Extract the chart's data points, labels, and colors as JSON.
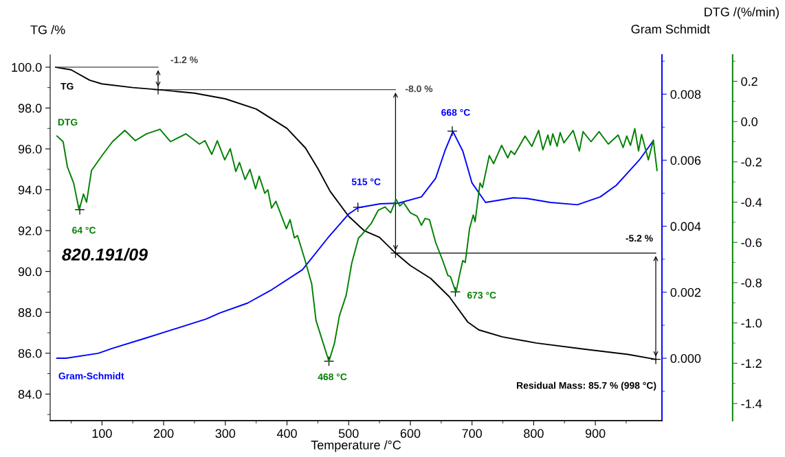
{
  "chart_data": {
    "type": "line",
    "xlabel": "Temperature /°C",
    "ylabel": "TG /%",
    "y2label": "Gram Schmidt",
    "y3label": "DTG /(%/min)",
    "xlim": [
      16,
      1008
    ],
    "xticks": [
      100,
      200,
      300,
      400,
      500,
      600,
      700,
      800,
      900
    ],
    "ylim": [
      82.7,
      100.6
    ],
    "yticks": [
      {
        "value": 84,
        "label": "84.0"
      },
      {
        "value": 86,
        "label": "86.0"
      },
      {
        "value": 88,
        "label": "88.0"
      },
      {
        "value": 90,
        "label": "90.0"
      },
      {
        "value": 92,
        "label": "92.0"
      },
      {
        "value": 94,
        "label": "94.0"
      },
      {
        "value": 96,
        "label": "96.0"
      },
      {
        "value": 98,
        "label": "98.0"
      },
      {
        "value": 100,
        "label": "100.0"
      }
    ],
    "y2lim": [
      -0.00189,
      0.00919
    ],
    "y2ticks": [
      {
        "value": 0,
        "label": "0.000"
      },
      {
        "value": 0.002,
        "label": "0.002"
      },
      {
        "value": 0.004,
        "label": "0.004"
      },
      {
        "value": 0.006,
        "label": "0.006"
      },
      {
        "value": 0.008,
        "label": "0.008"
      }
    ],
    "y3lim": [
      -1.485,
      0.331
    ],
    "y3ticks": [
      {
        "value": -1.4,
        "label": "-1.4"
      },
      {
        "value": -1.2,
        "label": "-1.2"
      },
      {
        "value": -1.0,
        "label": "-1.0"
      },
      {
        "value": -0.8,
        "label": "-0.8"
      },
      {
        "value": -0.6,
        "label": "-0.6"
      },
      {
        "value": -0.4,
        "label": "-0.4"
      },
      {
        "value": -0.2,
        "label": "-0.2"
      },
      {
        "value": 0,
        "label": "0.0"
      },
      {
        "value": 0.2,
        "label": "0.2"
      }
    ],
    "grid": false,
    "legend": "left",
    "marker": "none",
    "line_style": "solid",
    "series": [
      {
        "name": "TG",
        "color": "#000000",
        "axis": "y",
        "x": [
          25,
          50,
          80,
          100,
          150,
          191,
          250,
          300,
          350,
          400,
          430,
          450,
          470,
          500,
          525,
          550,
          576,
          600,
          633,
          663,
          693,
          711,
          749,
          804,
          879,
          953,
          998
        ],
        "values": [
          100.0,
          99.87,
          99.36,
          99.18,
          99.0,
          98.9,
          98.73,
          98.45,
          97.95,
          97.0,
          96.04,
          95.04,
          93.92,
          92.7,
          92.0,
          91.67,
          90.9,
          90.29,
          89.66,
          88.77,
          87.53,
          87.14,
          86.8,
          86.5,
          86.21,
          85.94,
          85.7
        ]
      },
      {
        "name": "Gram-Schmidt",
        "color": "#0000ff",
        "axis": "y2",
        "x": [
          27,
          42,
          94,
          117,
          169,
          210,
          269,
          291,
          336,
          373,
          425,
          466,
          500,
          515,
          551,
          581,
          618,
          641,
          656,
          669,
          685,
          700,
          722,
          767,
          789,
          827,
          871,
          908,
          934,
          971,
          994
        ],
        "values": [
          0.0,
          0.0,
          0.00015,
          0.0003,
          0.0006,
          0.00084,
          0.00119,
          0.00137,
          0.00167,
          0.00205,
          0.00268,
          0.00364,
          0.00437,
          0.00456,
          0.00468,
          0.0047,
          0.00489,
          0.00545,
          0.00628,
          0.00687,
          0.00628,
          0.00531,
          0.00472,
          0.00486,
          0.00484,
          0.00472,
          0.00465,
          0.00489,
          0.00524,
          0.006,
          0.00659
        ]
      },
      {
        "name": "DTG",
        "color": "#008000",
        "axis": "y3",
        "x": [
          27,
          37,
          44,
          54,
          63,
          70,
          75,
          83,
          100,
          117,
          137,
          154,
          172,
          194,
          211,
          236,
          258,
          267,
          278,
          287,
          299,
          308,
          317,
          323,
          332,
          340,
          349,
          355,
          364,
          369,
          375,
          382,
          399,
          405,
          412,
          417,
          429,
          440,
          447,
          468,
          477,
          485,
          496,
          505,
          516,
          520,
          537,
          548,
          559,
          568,
          577,
          583,
          589,
          600,
          611,
          618,
          624,
          631,
          641,
          652,
          661,
          665,
          674,
          680,
          685,
          689,
          696,
          702,
          705,
          713,
          717,
          728,
          735,
          748,
          758,
          763,
          769,
          786,
          797,
          808,
          815,
          823,
          827,
          831,
          838,
          843,
          849,
          864,
          874,
          880,
          893,
          906,
          921,
          937,
          945,
          951,
          957,
          964,
          970,
          975,
          986,
          994,
          1000
        ],
        "values": [
          -0.072,
          -0.1,
          -0.226,
          -0.305,
          -0.44,
          -0.36,
          -0.4,
          -0.243,
          -0.169,
          -0.1,
          -0.044,
          -0.095,
          -0.061,
          -0.038,
          -0.1,
          -0.061,
          -0.112,
          -0.095,
          -0.163,
          -0.095,
          -0.19,
          -0.135,
          -0.248,
          -0.203,
          -0.288,
          -0.237,
          -0.334,
          -0.271,
          -0.356,
          -0.339,
          -0.43,
          -0.396,
          -0.532,
          -0.487,
          -0.578,
          -0.566,
          -0.686,
          -0.805,
          -0.987,
          -1.191,
          -1.1,
          -0.964,
          -0.862,
          -0.703,
          -0.578,
          -0.566,
          -0.504,
          -0.44,
          -0.424,
          -0.453,
          -0.387,
          -0.419,
          -0.402,
          -0.453,
          -0.47,
          -0.515,
          -0.481,
          -0.487,
          -0.6,
          -0.686,
          -0.765,
          -0.77,
          -0.848,
          -0.759,
          -0.69,
          -0.7,
          -0.532,
          -0.464,
          -0.497,
          -0.305,
          -0.328,
          -0.169,
          -0.209,
          -0.118,
          -0.18,
          -0.146,
          -0.163,
          -0.072,
          -0.123,
          -0.044,
          -0.14,
          -0.067,
          -0.118,
          -0.061,
          -0.123,
          -0.055,
          -0.106,
          -0.044,
          -0.146,
          -0.05,
          -0.1,
          -0.05,
          -0.112,
          -0.067,
          -0.129,
          -0.072,
          -0.118,
          -0.035,
          -0.146,
          -0.064,
          -0.19,
          -0.092,
          -0.243
        ]
      },
      {
        "color": "#404040",
        "axis": "y",
        "x": [
          25,
          191
        ],
        "values": [
          100.0,
          100.0
        ]
      },
      {
        "color": "#404040",
        "axis": "y",
        "x": [
          191,
          576
        ],
        "values": [
          98.9,
          98.9
        ]
      },
      {
        "color": "#000000",
        "axis": "y",
        "x": [
          576,
          998
        ],
        "values": [
          90.9,
          90.9
        ]
      }
    ],
    "annotations": [
      {
        "text": "-1.2 %",
        "x": 191,
        "y": 100.0
      },
      {
        "text": "-8.0 %",
        "x": 576,
        "y": 98.9
      },
      {
        "text": "-5.2 %",
        "x": 998,
        "y": 90.9
      },
      {
        "text": "64 °C",
        "x": 64,
        "y": 93.02
      },
      {
        "text": "468 °C",
        "x": 468,
        "y": 85.61
      },
      {
        "text": "673 °C",
        "x": 673,
        "y": 89.0
      },
      {
        "text": "515 °C",
        "x": 515,
        "y": 93.14
      },
      {
        "text": "668 °C",
        "x": 668,
        "y": 96.87
      },
      "820.191/09",
      "Residual Mass: 85.7 % (998 °C)"
    ]
  }
}
